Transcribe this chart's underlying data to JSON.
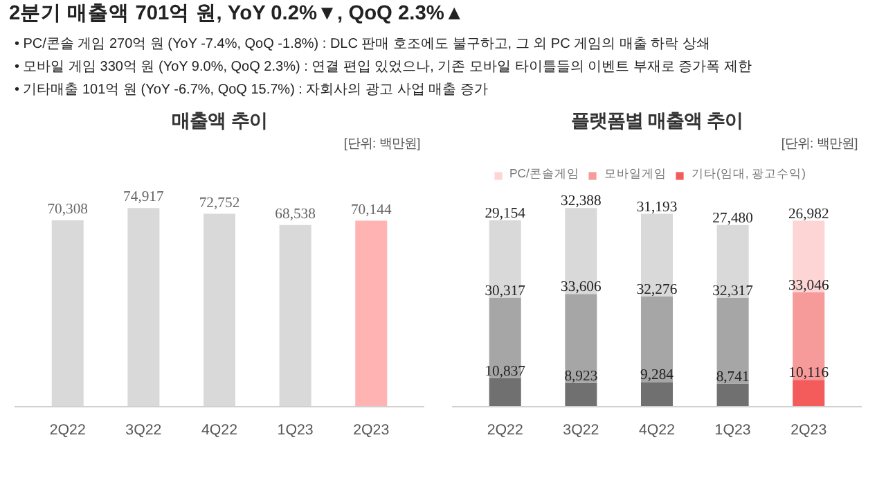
{
  "chart_data": [
    {
      "type": "other",
      "title": "2분기 매출액 701억 원, YoY 0.2%▼, QoQ 2.3%▲",
      "annotations": [
        "• PC/콘솔 게임  270억 원 (YoY -7.4%, QoQ -1.8%) : DLC 판매 호조에도 불구하고, 그 외 PC 게임의 매출 하락 상쇄",
        "• 모바일 게임  330억 원 (YoY 9.0%, QoQ 2.3%) :  연결 편입 있었으나, 기존 모바일 타이틀들의 이벤트 부재로 증가폭 제한",
        "• 기타매출  101억 원 (YoY -6.7%, QoQ 15.7%) : 자회사의 광고 사업 매출 증가"
      ]
    },
    {
      "type": "bar",
      "title": "매출액 추이",
      "subtitle": "[단위: 백만원]",
      "categories": [
        "2Q22",
        "3Q22",
        "4Q22",
        "1Q23",
        "2Q23"
      ],
      "values": [
        70308,
        74917,
        72752,
        68538,
        70144
      ],
      "colors": [
        "#d9d9d9",
        "#d9d9d9",
        "#d9d9d9",
        "#d9d9d9",
        "#ffb3b3"
      ],
      "value_labels": [
        "70,308",
        "74,917",
        "72,752",
        "68,538",
        "70,144"
      ]
    },
    {
      "type": "bar",
      "title": "플랫폼별 매출액 추이",
      "subtitle": "[단위: 백만원]",
      "categories": [
        "2Q22",
        "3Q22",
        "4Q22",
        "1Q23",
        "2Q23"
      ],
      "stacked": true,
      "legend": "top",
      "series": [
        {
          "name": "기타(임대, 광고수익)",
          "values": [
            10837,
            8923,
            9284,
            8741,
            10116
          ],
          "value_labels": [
            "10,837",
            "8,923",
            "9,284",
            "8,741",
            "10,116"
          ],
          "colors": [
            "#707070",
            "#707070",
            "#707070",
            "#707070",
            "#f45b5b"
          ]
        },
        {
          "name": "모바일게임",
          "values": [
            30317,
            33606,
            32276,
            32317,
            33046
          ],
          "value_labels": [
            "30,317",
            "33,606",
            "32,276",
            "32,317",
            "33,046"
          ],
          "colors": [
            "#a6a6a6",
            "#a6a6a6",
            "#a6a6a6",
            "#a6a6a6",
            "#f79a9a"
          ]
        },
        {
          "name": "PC/콘솔게임",
          "values": [
            29154,
            32388,
            31193,
            27480,
            26982
          ],
          "value_labels": [
            "29,154",
            "32,388",
            "31,193",
            "27,480",
            "26,982"
          ],
          "colors": [
            "#d9d9d9",
            "#d9d9d9",
            "#d9d9d9",
            "#d9d9d9",
            "#fdd5d5"
          ]
        }
      ]
    }
  ]
}
